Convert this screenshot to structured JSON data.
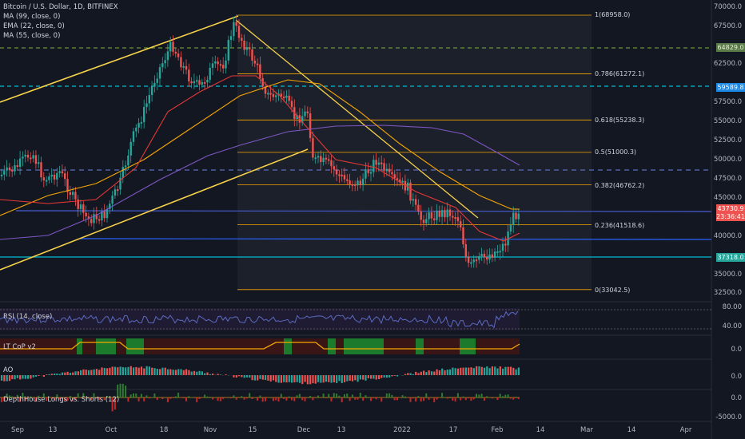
{
  "legend": {
    "title": "Bitcoin / U.S. Dollar, 1D, BITFINEX",
    "ma99": "MA (99, close, 0)",
    "ema22": "EMA (22, close, 0)",
    "ma55": "MA (55, close, 0)"
  },
  "panes": {
    "rsi": "RSI (14, close)",
    "ltcop": "LT CoP v2",
    "ao": "AO",
    "depth": "DepthHouse Longs vs. Shorts (12)"
  },
  "price_axis": [
    "70000.0",
    "67500.0",
    "62500.0",
    "57500.0",
    "55000.0",
    "52500.0",
    "50000.0",
    "47500.0",
    "45000.0",
    "40000.0",
    "35000.0",
    "32500.0"
  ],
  "badges": {
    "green": "64829.0",
    "cyan_top": "59589.8",
    "last": "43730.9",
    "countdown": "23:36:41",
    "cyan_bottom": "37318.0"
  },
  "fib_levels": [
    {
      "label": "1(68958.0)",
      "price": 68958
    },
    {
      "label": "0.786(61272.1)",
      "price": 61272.1
    },
    {
      "label": "0.618(55238.3)",
      "price": 55238.3
    },
    {
      "label": "0.5(51000.3)",
      "price": 51000.3
    },
    {
      "label": "0.382(46762.2)",
      "price": 46762.2
    },
    {
      "label": "0.236(41518.6)",
      "price": 41518.6
    },
    {
      "label": "0(33042.5)",
      "price": 33042.5
    }
  ],
  "rsi_axis": [
    "80.00",
    "40.00"
  ],
  "ltcop_axis": "0.0",
  "ao_axis": "0.0",
  "depth_axis": [
    "0.0",
    "-5000.0"
  ],
  "x_axis": [
    "Sep",
    "13",
    "Oct",
    "18",
    "Nov",
    "15",
    "Dec",
    "13",
    "2022",
    "17",
    "Feb",
    "14",
    "Mar",
    "14",
    "Apr"
  ],
  "colors": {
    "up": "#26a69a",
    "down": "#ef5350",
    "fib": "#f7a600",
    "background": "#131722"
  }
}
